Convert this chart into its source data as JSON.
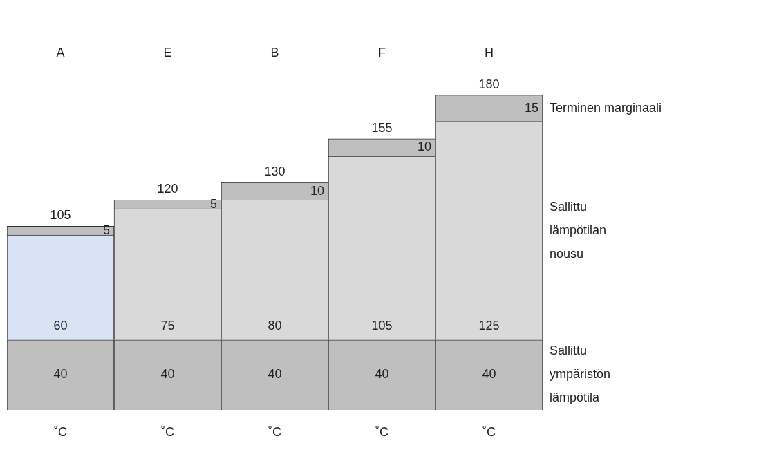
{
  "chart_data": {
    "type": "bar",
    "stacked": true,
    "data_labels": true,
    "categories": [
      "A",
      "E",
      "B",
      "F",
      "H"
    ],
    "series": [
      {
        "name": "Sallittu ympäristön lämpötila",
        "color": "#bfbfbf",
        "values": [
          40,
          40,
          40,
          40,
          40
        ]
      },
      {
        "name": "Sallittu lämpötilan nousu",
        "colors": [
          "#dae3f3",
          "#d9d9d9",
          "#d9d9d9",
          "#d9d9d9",
          "#d9d9d9"
        ],
        "values": [
          60,
          75,
          80,
          105,
          125
        ]
      },
      {
        "name": "Terminen marginaali",
        "color": "#bfbfbf",
        "values": [
          5,
          5,
          10,
          10,
          15
        ]
      }
    ],
    "totals": [
      "105",
      "120",
      "130",
      "155",
      "180"
    ],
    "annotations": [
      "˚C",
      "˚C",
      "˚C",
      "˚C",
      "˚C"
    ]
  }
}
